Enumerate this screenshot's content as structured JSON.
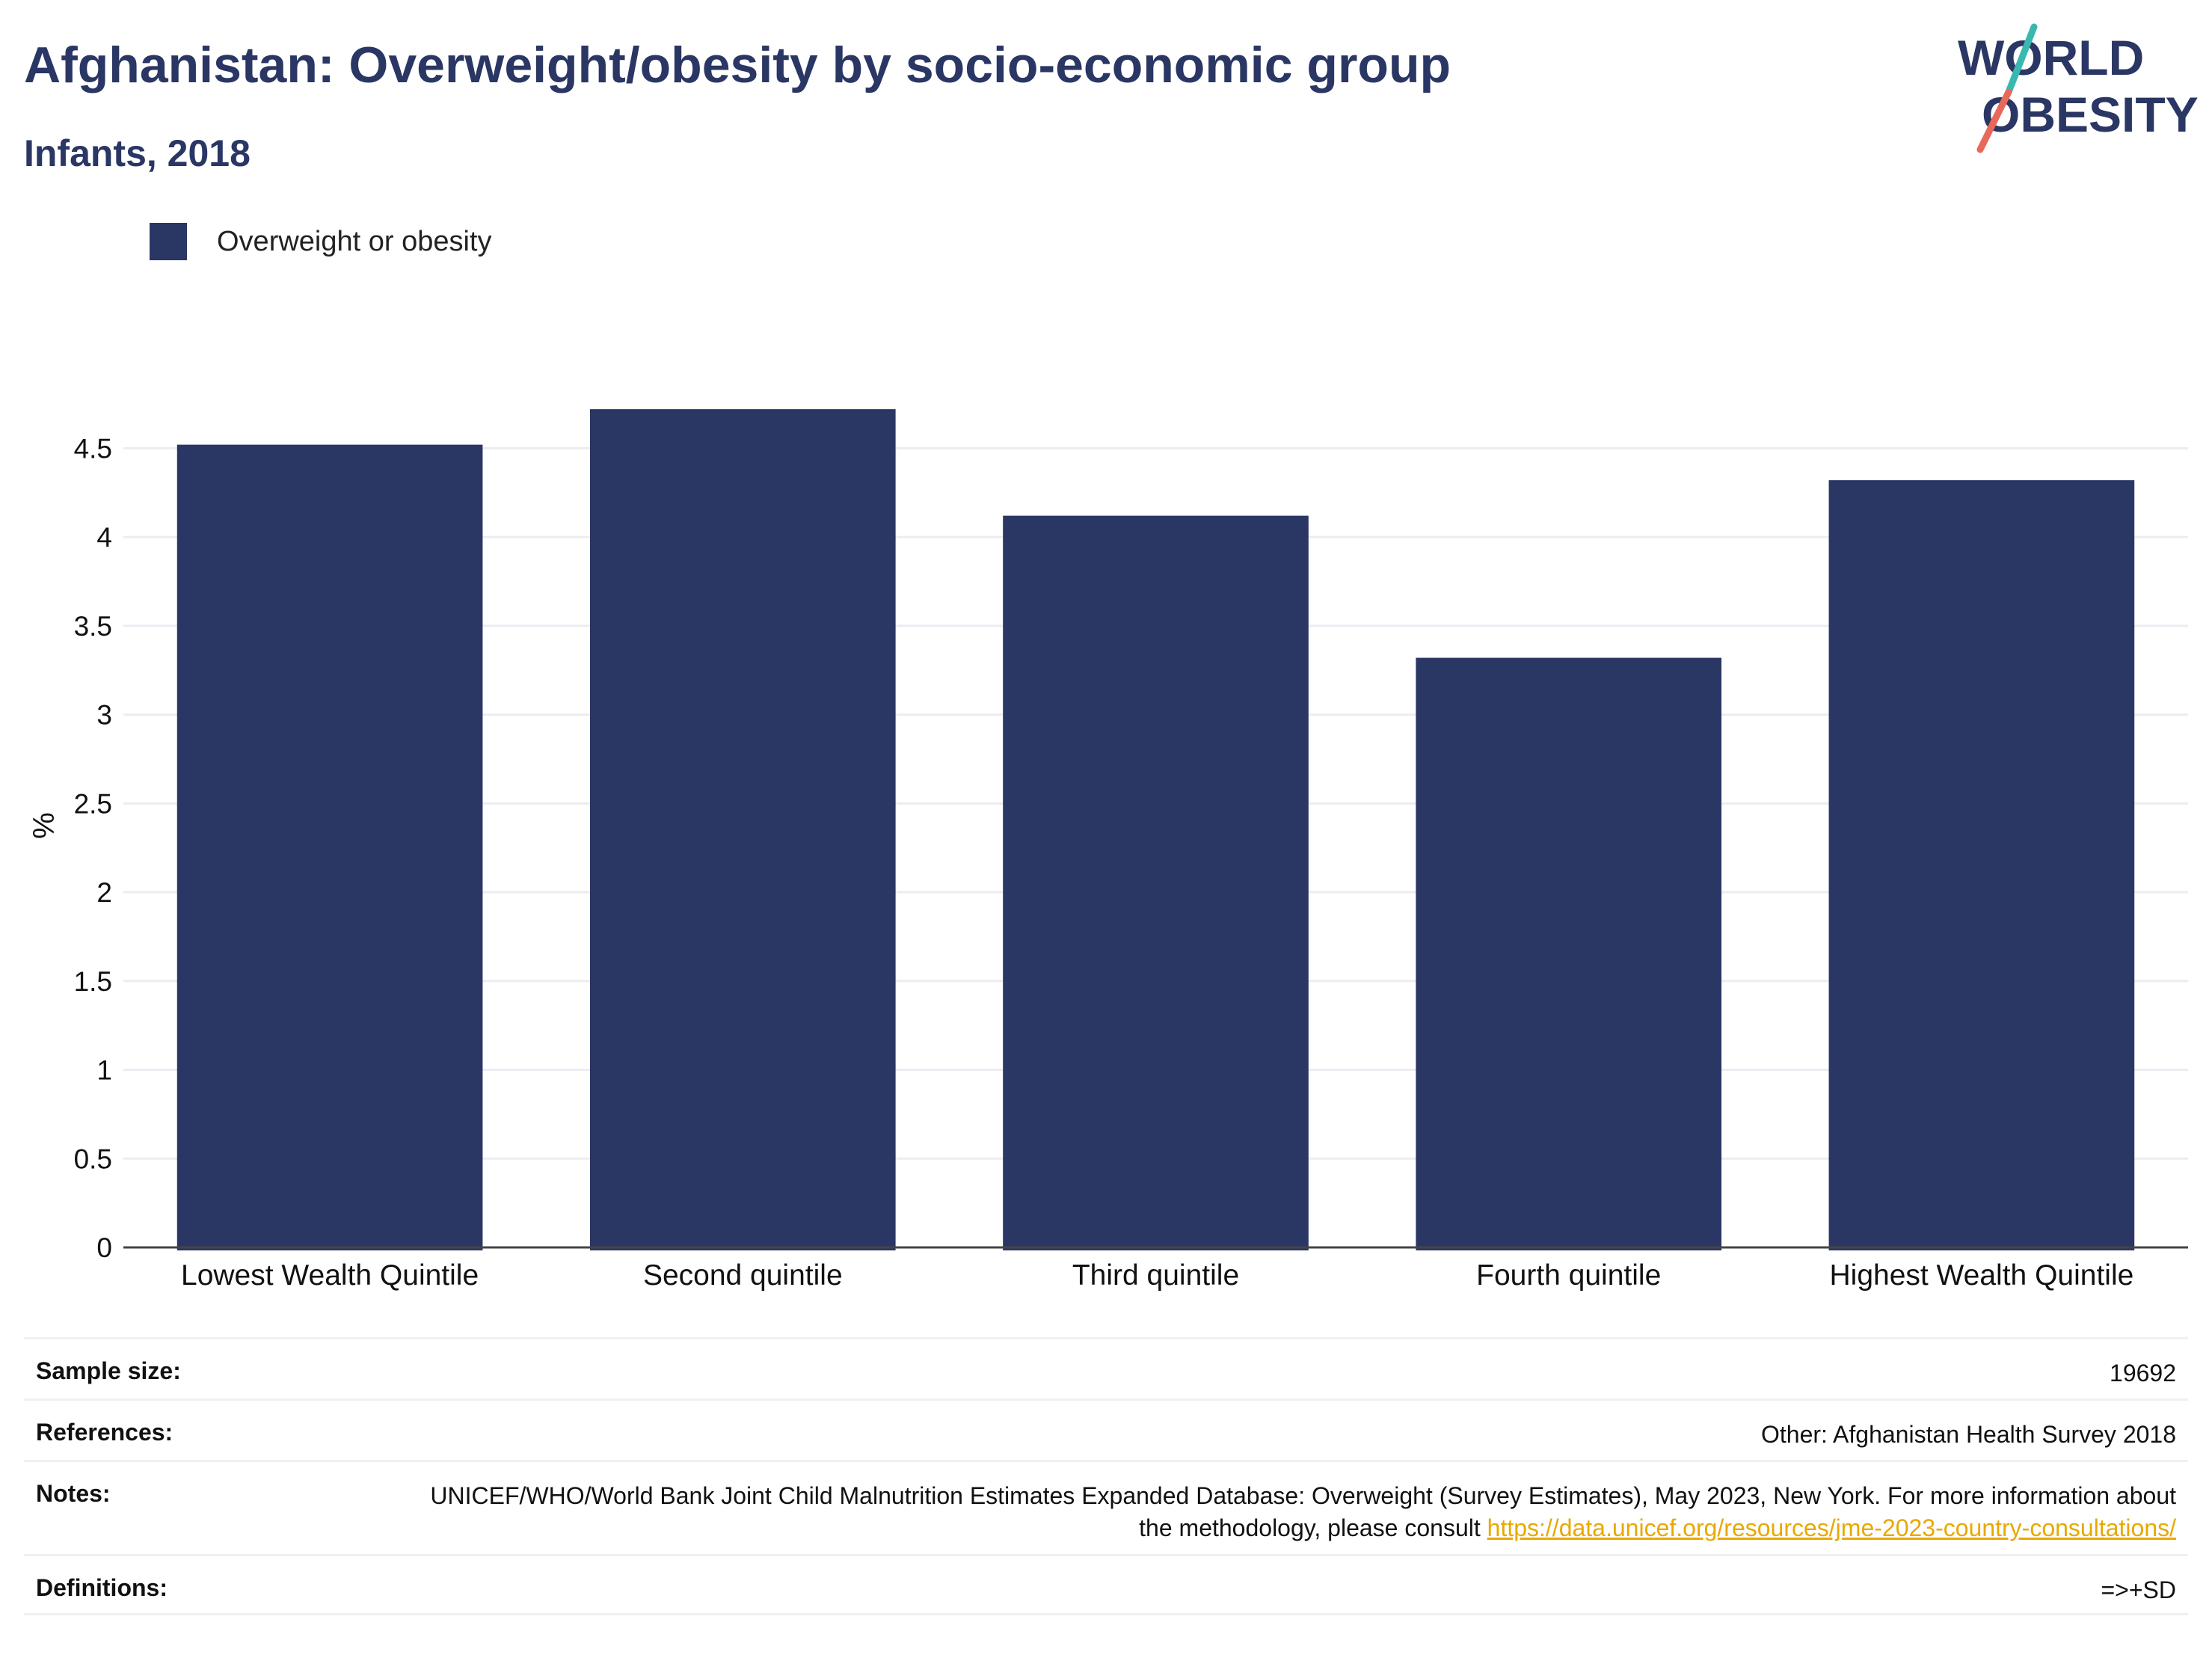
{
  "header": {
    "title": "Afghanistan: Overweight/obesity by socio-economic group",
    "subtitle": "Infants, 2018"
  },
  "logo": {
    "line1": "WORLD",
    "line2": "OBESITY",
    "text_color": "#2a3663",
    "slash_top_color": "#3ab8b0",
    "slash_bottom_color": "#e8695a"
  },
  "legend": {
    "label": "Overweight or obesity",
    "color": "#2a3663"
  },
  "chart_data": {
    "type": "bar",
    "categories": [
      "Lowest Wealth Quintile",
      "Second quintile",
      "Third quintile",
      "Fourth quintile",
      "Highest Wealth Quintile"
    ],
    "series": [
      {
        "name": "Overweight or obesity",
        "values": [
          4.52,
          4.72,
          4.12,
          3.32,
          4.32
        ],
        "color": "#2a3663"
      }
    ],
    "ylabel": "%",
    "ylim": [
      0,
      4.75
    ],
    "yticks": [
      0,
      0.5,
      1,
      1.5,
      2,
      2.5,
      3,
      3.5,
      4,
      4.5
    ],
    "ytick_labels": [
      "0",
      "0.5",
      "1",
      "1.5",
      "2",
      "2.5",
      "3",
      "3.5",
      "4",
      "4.5"
    ],
    "grid": true,
    "legend_position": "top-left"
  },
  "meta": {
    "sample_size_label": "Sample size:",
    "sample_size_value": "19692",
    "references_label": "References:",
    "references_value": "Other: Afghanistan Health Survey 2018",
    "notes_label": "Notes:",
    "notes_text": "UNICEF/WHO/World Bank Joint Child Malnutrition Estimates Expanded Database: Overweight (Survey Estimates), May 2023, New York. For more information about the methodology, please consult ",
    "notes_link": "https://data.unicef.org/resources/jme-2023-country-consultations/",
    "definitions_label": "Definitions:",
    "definitions_value": "=>+SD"
  }
}
